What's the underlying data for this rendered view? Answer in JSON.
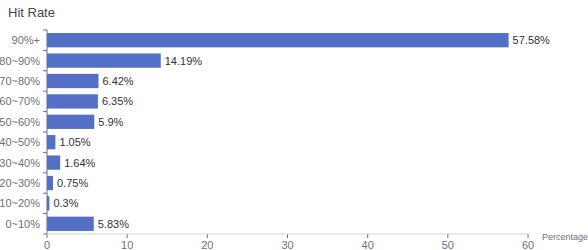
{
  "chart_data": {
    "type": "bar",
    "title": "Hit Rate",
    "x_label": "Percentage",
    "orientation": "horizontal",
    "categories": [
      "90%+",
      "80~90%",
      "70~80%",
      "60~70%",
      "50~60%",
      "40~50%",
      "30~40%",
      "20~30%",
      "10~20%",
      "0~10%"
    ],
    "values": [
      57.58,
      14.19,
      6.42,
      6.35,
      5.9,
      1.05,
      1.64,
      0.75,
      0.3,
      5.83
    ],
    "value_labels": [
      "57.58%",
      "14.19%",
      "6.42%",
      "6.35%",
      "5.9%",
      "1.05%",
      "1.64%",
      "0.75%",
      "0.3%",
      "5.83%"
    ],
    "color": "#5470c6",
    "xlim": [
      0,
      60
    ],
    "xticks": [
      0,
      10,
      20,
      30,
      40,
      50,
      60
    ],
    "grid": false,
    "data_labels": true
  }
}
